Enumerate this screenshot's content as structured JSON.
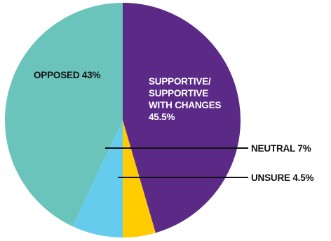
{
  "chart_data": {
    "type": "pie",
    "title": "",
    "legend": "none",
    "start": "top, clockwise",
    "slices": [
      {
        "label_lines": [
          "SUPPORTIVE/",
          "SUPPORTIVE",
          "WITH CHANGES",
          "45.5%"
        ],
        "value": 45.5,
        "color": "#5b2a86",
        "label_color": "#ffffff",
        "label_placement": "inside"
      },
      {
        "label_lines": [
          "UNSURE 4.5%"
        ],
        "value": 4.5,
        "color": "#ffcc00",
        "label_color": "#111111",
        "label_placement": "callout"
      },
      {
        "label_lines": [
          "NEUTRAL 7%"
        ],
        "value": 7,
        "color": "#66ccee",
        "label_color": "#111111",
        "label_placement": "callout"
      },
      {
        "label_lines": [
          "OPPOSED 43%"
        ],
        "value": 43,
        "color": "#6bc4bb",
        "label_color": "#111111",
        "label_placement": "inside"
      }
    ]
  }
}
